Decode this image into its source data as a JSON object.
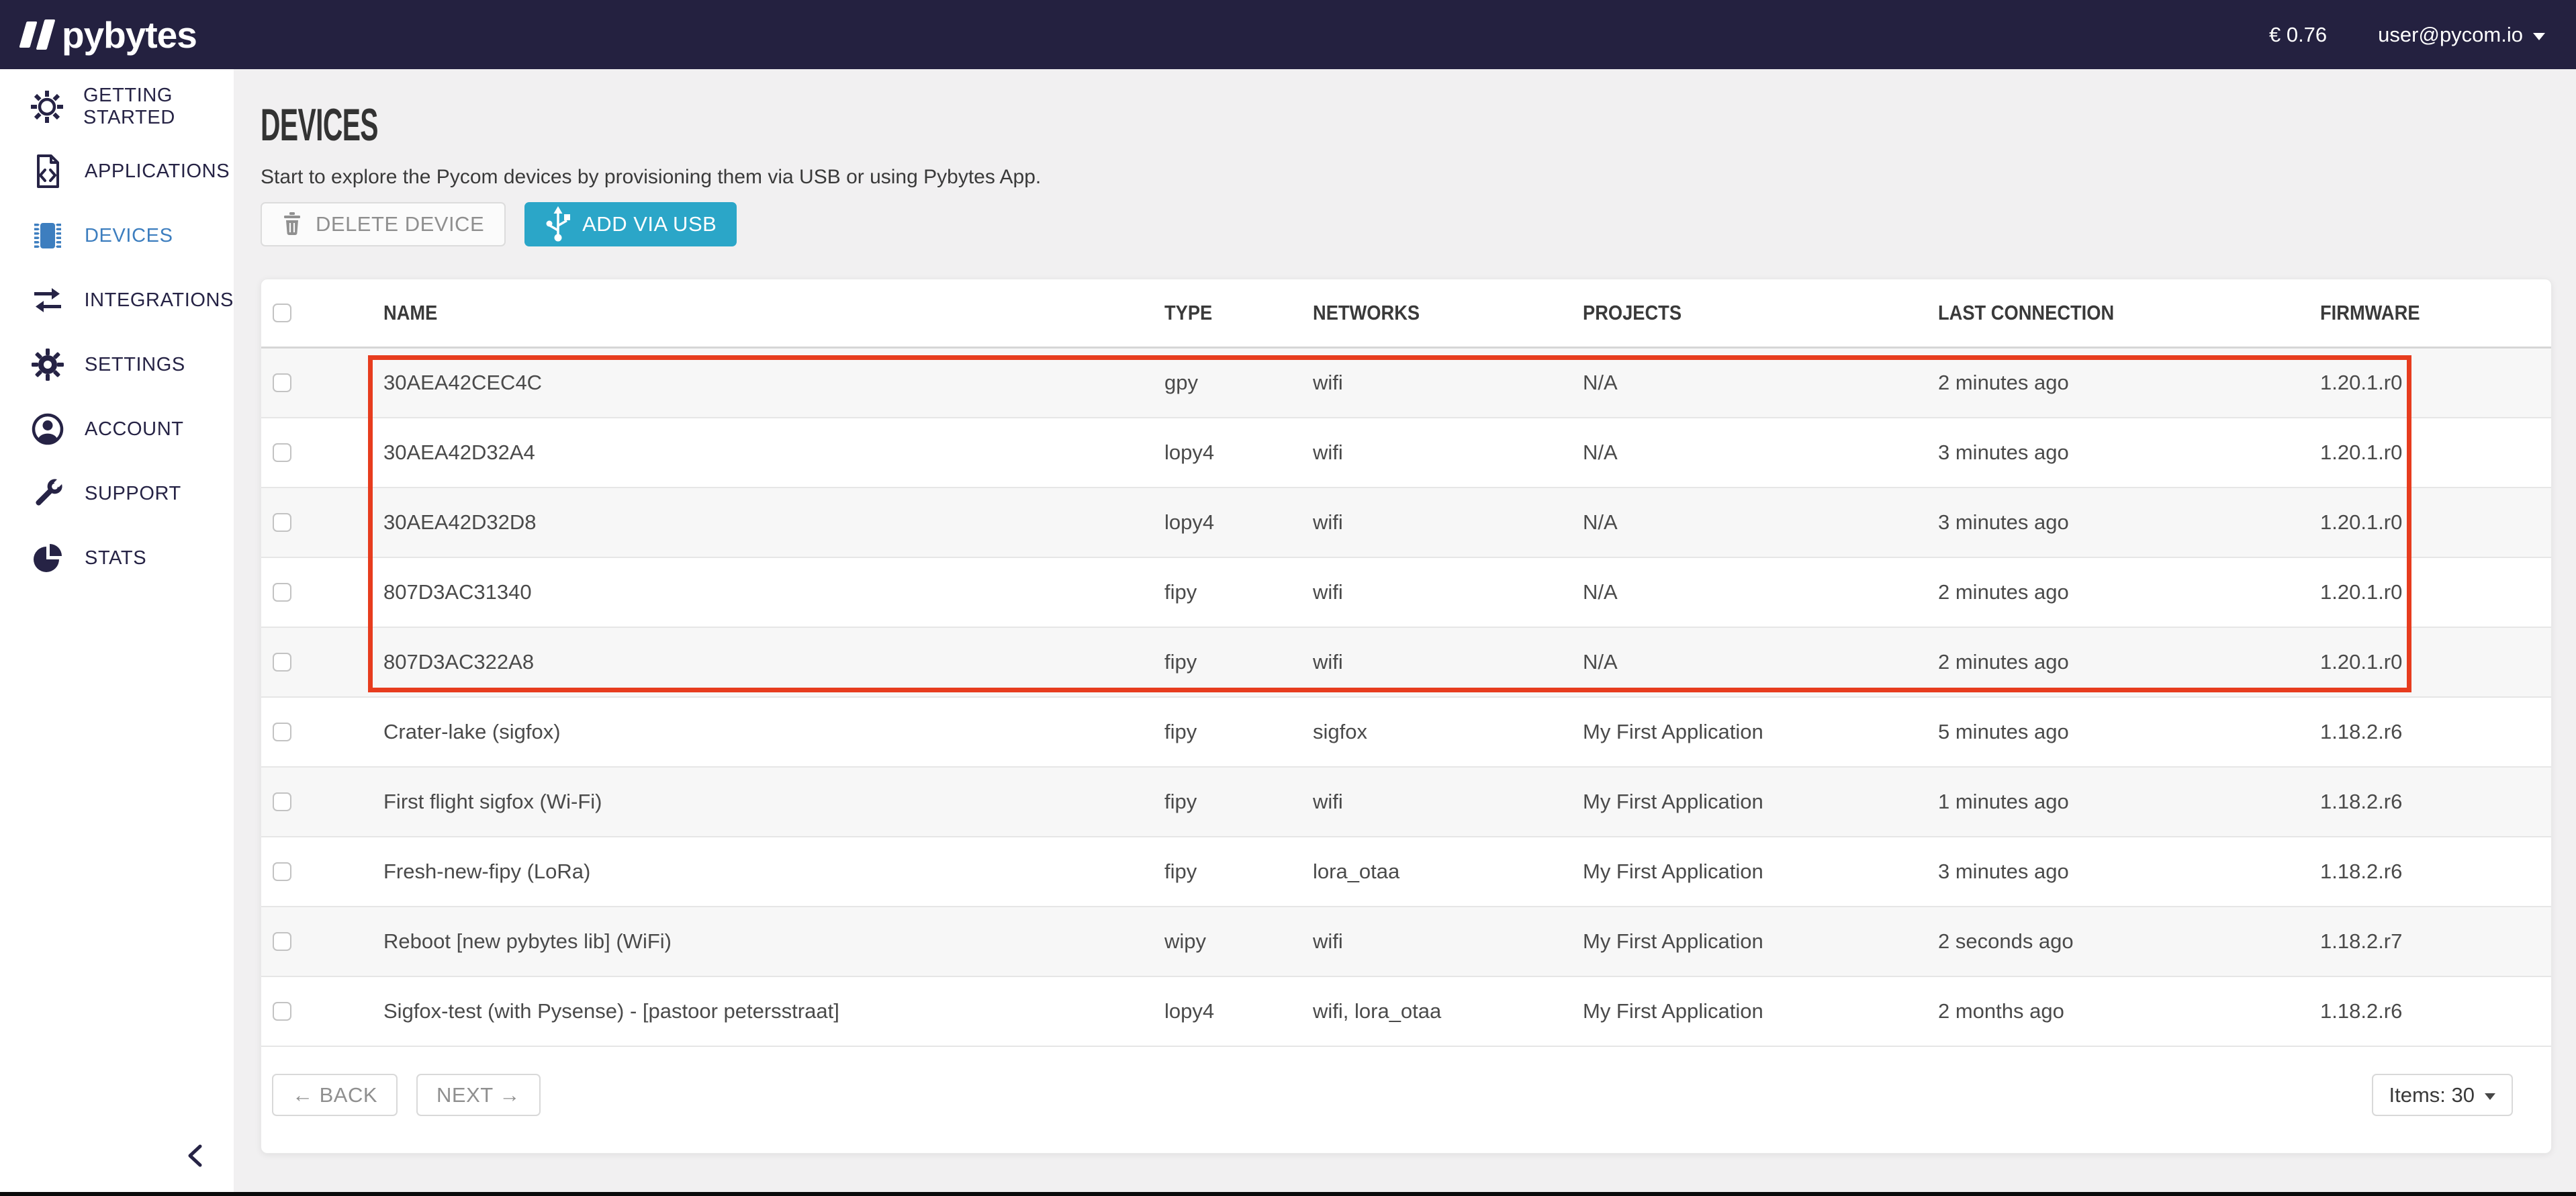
{
  "topbar": {
    "logo_text": "pybytes",
    "balance": "€ 0.76",
    "user_email": "user@pycom.io"
  },
  "sidebar": {
    "items": [
      {
        "label": "GETTING STARTED",
        "icon": "sun-icon",
        "active": false
      },
      {
        "label": "APPLICATIONS",
        "icon": "code-document-icon",
        "active": false
      },
      {
        "label": "DEVICES",
        "icon": "chip-icon",
        "active": true
      },
      {
        "label": "INTEGRATIONS",
        "icon": "arrows-exchange-icon",
        "active": false
      },
      {
        "label": "SETTINGS",
        "icon": "gear-icon",
        "active": false
      },
      {
        "label": "ACCOUNT",
        "icon": "user-icon",
        "active": false
      },
      {
        "label": "SUPPORT",
        "icon": "wrench-icon",
        "active": false
      },
      {
        "label": "STATS",
        "icon": "pie-chart-icon",
        "active": false
      }
    ]
  },
  "page": {
    "title": "DEVICES",
    "subtitle": "Start to explore the Pycom devices by provisioning them via USB or using Pybytes App.",
    "delete_button_label": "DELETE DEVICE",
    "add_button_label": "ADD VIA USB"
  },
  "table": {
    "headers": [
      "NAME",
      "TYPE",
      "NETWORKS",
      "PROJECTS",
      "LAST CONNECTION",
      "FIRMWARE"
    ],
    "rows": [
      {
        "name": "30AEA42CEC4C",
        "type": "gpy",
        "networks": "wifi",
        "projects": "N/A",
        "last_connection": "2 minutes ago",
        "firmware": "1.20.1.r0",
        "highlighted": true
      },
      {
        "name": "30AEA42D32A4",
        "type": "lopy4",
        "networks": "wifi",
        "projects": "N/A",
        "last_connection": "3 minutes ago",
        "firmware": "1.20.1.r0",
        "highlighted": true
      },
      {
        "name": "30AEA42D32D8",
        "type": "lopy4",
        "networks": "wifi",
        "projects": "N/A",
        "last_connection": "3 minutes ago",
        "firmware": "1.20.1.r0",
        "highlighted": true
      },
      {
        "name": "807D3AC31340",
        "type": "fipy",
        "networks": "wifi",
        "projects": "N/A",
        "last_connection": "2 minutes ago",
        "firmware": "1.20.1.r0",
        "highlighted": true
      },
      {
        "name": "807D3AC322A8",
        "type": "fipy",
        "networks": "wifi",
        "projects": "N/A",
        "last_connection": "2 minutes ago",
        "firmware": "1.20.1.r0",
        "highlighted": true
      },
      {
        "name": "Crater-lake (sigfox)",
        "type": "fipy",
        "networks": "sigfox",
        "projects": "My First Application",
        "last_connection": "5 minutes ago",
        "firmware": "1.18.2.r6",
        "highlighted": false
      },
      {
        "name": "First flight sigfox (Wi-Fi)",
        "type": "fipy",
        "networks": "wifi",
        "projects": "My First Application",
        "last_connection": "1 minutes ago",
        "firmware": "1.18.2.r6",
        "highlighted": false
      },
      {
        "name": "Fresh-new-fipy (LoRa)",
        "type": "fipy",
        "networks": "lora_otaa",
        "projects": "My First Application",
        "last_connection": "3 minutes ago",
        "firmware": "1.18.2.r6",
        "highlighted": false
      },
      {
        "name": "Reboot [new pybytes lib] (WiFi)",
        "type": "wipy",
        "networks": "wifi",
        "projects": "My First Application",
        "last_connection": "2 seconds ago",
        "firmware": "1.18.2.r7",
        "highlighted": false
      },
      {
        "name": "Sigfox-test (with Pysense) - [pastoor petersstraat]",
        "type": "lopy4",
        "networks": "wifi, lora_otaa",
        "projects": "My First Application",
        "last_connection": "2 months ago",
        "firmware": "1.18.2.r6",
        "highlighted": false
      }
    ]
  },
  "pagination": {
    "back_label": "← BACK",
    "next_label": "NEXT →",
    "items_label": "Items: 30"
  },
  "colors": {
    "topbar_bg": "#242140",
    "sidebar_active": "#3d7ebf",
    "add_button_teal": "#2ba6c8",
    "highlight_red": "#e73c1e",
    "row_alt_bg": "#f7f7f7"
  }
}
